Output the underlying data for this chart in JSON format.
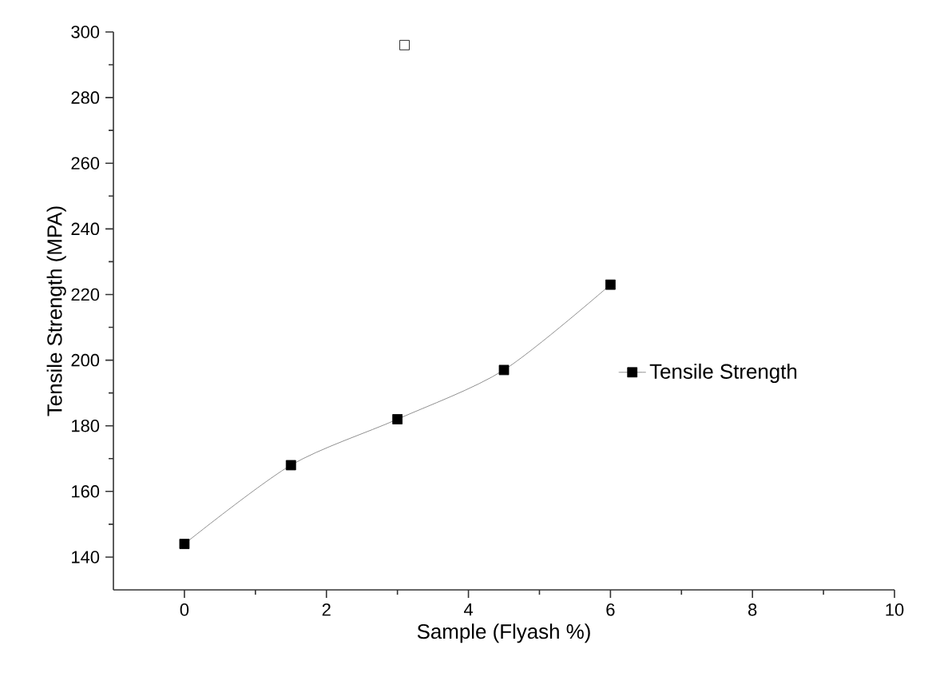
{
  "chart_data": {
    "type": "line",
    "xlabel": "Sample (Flyash %)",
    "ylabel": "Tensile Strength (MPA)",
    "xlim": [
      -1,
      10
    ],
    "xticks": [
      0,
      2,
      4,
      6,
      8,
      10
    ],
    "ylim": [
      130,
      300
    ],
    "yticks": [
      140,
      160,
      180,
      200,
      220,
      240,
      260,
      280,
      300
    ],
    "legend": "right",
    "marker": "square",
    "grid": false,
    "series": [
      {
        "name": "Tensile Strength",
        "color": "#000000",
        "x": [
          0,
          1.5,
          3,
          4.5,
          6
        ],
        "values": [
          144,
          168,
          182,
          197,
          223
        ]
      },
      {
        "type": "scatter",
        "color": "#000000",
        "x": [
          3.1
        ],
        "values": [
          296
        ]
      }
    ]
  }
}
